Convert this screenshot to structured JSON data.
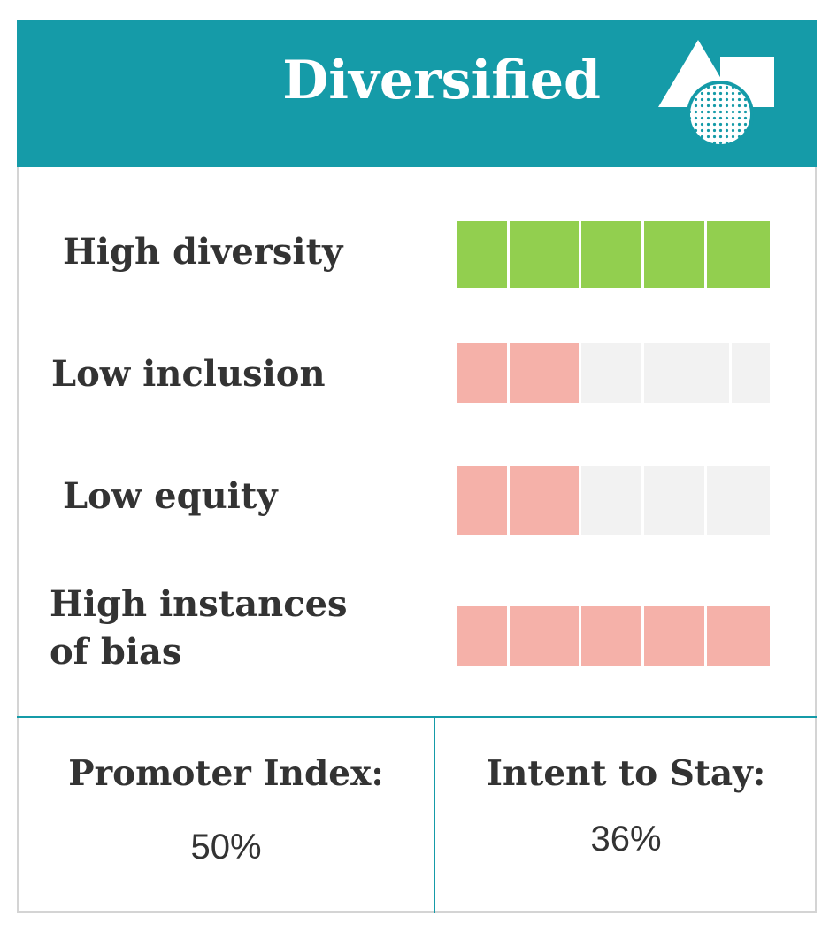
{
  "card": {
    "title": "Diversified",
    "icon": "shapes-icon",
    "colors": {
      "header": "#159ba8",
      "positive": "#92cf4f",
      "negative": "#f5b1a9",
      "empty": "#f2f2f2",
      "text": "#333333"
    }
  },
  "metrics": [
    {
      "label": "High diversity",
      "level": 5,
      "max": 5,
      "tone": "positive"
    },
    {
      "label": "Low inclusion",
      "level": 2,
      "max": 5,
      "tone": "negative"
    },
    {
      "label": "Low equity",
      "level": 2,
      "max": 5,
      "tone": "negative"
    },
    {
      "label_line1": "High instances",
      "label_line2": "of bias",
      "level": 5,
      "max": 5,
      "tone": "negative"
    }
  ],
  "footer": {
    "promoter_label": "Promoter Index:",
    "promoter_value": "50%",
    "intent_label": "Intent to Stay:",
    "intent_value": "36%"
  }
}
